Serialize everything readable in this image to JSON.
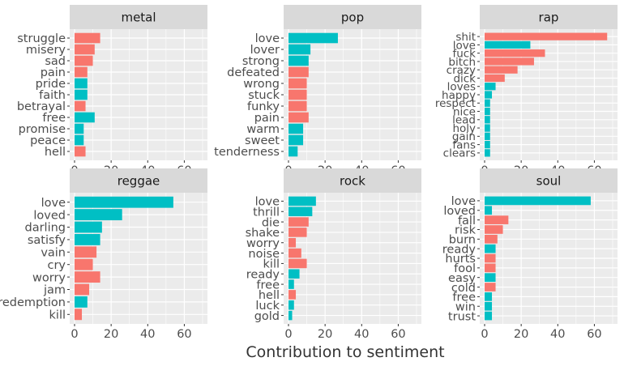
{
  "chart_data": {
    "type": "bar",
    "orientation": "horizontal",
    "xlabel": "Contribution to sentiment",
    "xlim": [
      0,
      70
    ],
    "xticks": [
      "0",
      "20",
      "40",
      "60"
    ],
    "facet_layout": "2x3",
    "grid": true,
    "colors": {
      "positive": "#00BFC4",
      "negative": "#F8766D",
      "panel_bg": "#EBEBEB",
      "strip_bg": "#D9D9D9",
      "grid": "#FFFFFF"
    },
    "panels": [
      {
        "title": "metal",
        "bars": [
          {
            "word": "struggle",
            "value": 14,
            "sentiment": "negative"
          },
          {
            "word": "misery",
            "value": 11,
            "sentiment": "negative"
          },
          {
            "word": "sad",
            "value": 10,
            "sentiment": "negative"
          },
          {
            "word": "pain",
            "value": 7,
            "sentiment": "negative"
          },
          {
            "word": "pride",
            "value": 7,
            "sentiment": "positive"
          },
          {
            "word": "faith",
            "value": 7,
            "sentiment": "positive"
          },
          {
            "word": "betrayal",
            "value": 6,
            "sentiment": "negative"
          },
          {
            "word": "free",
            "value": 11,
            "sentiment": "positive"
          },
          {
            "word": "promise",
            "value": 5,
            "sentiment": "positive"
          },
          {
            "word": "peace",
            "value": 5,
            "sentiment": "positive"
          },
          {
            "word": "hell",
            "value": 6,
            "sentiment": "negative"
          }
        ]
      },
      {
        "title": "pop",
        "bars": [
          {
            "word": "love",
            "value": 27,
            "sentiment": "positive"
          },
          {
            "word": "lover",
            "value": 12,
            "sentiment": "positive"
          },
          {
            "word": "strong",
            "value": 11,
            "sentiment": "positive"
          },
          {
            "word": "defeated",
            "value": 11,
            "sentiment": "negative"
          },
          {
            "word": "wrong",
            "value": 10,
            "sentiment": "negative"
          },
          {
            "word": "stuck",
            "value": 10,
            "sentiment": "negative"
          },
          {
            "word": "funky",
            "value": 10,
            "sentiment": "negative"
          },
          {
            "word": "pain",
            "value": 11,
            "sentiment": "negative"
          },
          {
            "word": "warm",
            "value": 8,
            "sentiment": "positive"
          },
          {
            "word": "sweet",
            "value": 8,
            "sentiment": "positive"
          },
          {
            "word": "tenderness",
            "value": 5,
            "sentiment": "positive"
          }
        ]
      },
      {
        "title": "rap",
        "bars": [
          {
            "word": "shit",
            "value": 67,
            "sentiment": "negative"
          },
          {
            "word": "love",
            "value": 25,
            "sentiment": "positive"
          },
          {
            "word": "fuck",
            "value": 33,
            "sentiment": "negative"
          },
          {
            "word": "bitch",
            "value": 27,
            "sentiment": "negative"
          },
          {
            "word": "crazy",
            "value": 18,
            "sentiment": "negative"
          },
          {
            "word": "dick",
            "value": 11,
            "sentiment": "negative"
          },
          {
            "word": "loves",
            "value": 6,
            "sentiment": "positive"
          },
          {
            "word": "happy",
            "value": 4,
            "sentiment": "positive"
          },
          {
            "word": "respect",
            "value": 3,
            "sentiment": "positive"
          },
          {
            "word": "nice",
            "value": 3,
            "sentiment": "positive"
          },
          {
            "word": "lead",
            "value": 3,
            "sentiment": "positive"
          },
          {
            "word": "holy",
            "value": 3,
            "sentiment": "positive"
          },
          {
            "word": "gain",
            "value": 3,
            "sentiment": "positive"
          },
          {
            "word": "fans",
            "value": 3,
            "sentiment": "positive"
          },
          {
            "word": "clears",
            "value": 3,
            "sentiment": "positive"
          }
        ]
      },
      {
        "title": "reggae",
        "bars": [
          {
            "word": "love",
            "value": 54,
            "sentiment": "positive"
          },
          {
            "word": "loved",
            "value": 26,
            "sentiment": "positive"
          },
          {
            "word": "darling",
            "value": 15,
            "sentiment": "positive"
          },
          {
            "word": "satisfy",
            "value": 14,
            "sentiment": "positive"
          },
          {
            "word": "vain",
            "value": 12,
            "sentiment": "negative"
          },
          {
            "word": "cry",
            "value": 10,
            "sentiment": "negative"
          },
          {
            "word": "worry",
            "value": 14,
            "sentiment": "negative"
          },
          {
            "word": "jam",
            "value": 8,
            "sentiment": "negative"
          },
          {
            "word": "redemption",
            "value": 7,
            "sentiment": "positive"
          },
          {
            "word": "kill",
            "value": 4,
            "sentiment": "negative"
          }
        ]
      },
      {
        "title": "rock",
        "bars": [
          {
            "word": "love",
            "value": 15,
            "sentiment": "positive"
          },
          {
            "word": "thrill",
            "value": 13,
            "sentiment": "positive"
          },
          {
            "word": "die",
            "value": 11,
            "sentiment": "negative"
          },
          {
            "word": "shake",
            "value": 10,
            "sentiment": "negative"
          },
          {
            "word": "worry",
            "value": 4,
            "sentiment": "negative"
          },
          {
            "word": "noise",
            "value": 7,
            "sentiment": "negative"
          },
          {
            "word": "kill",
            "value": 10,
            "sentiment": "negative"
          },
          {
            "word": "ready",
            "value": 6,
            "sentiment": "positive"
          },
          {
            "word": "free",
            "value": 3,
            "sentiment": "positive"
          },
          {
            "word": "hell",
            "value": 4,
            "sentiment": "negative"
          },
          {
            "word": "luck",
            "value": 3,
            "sentiment": "positive"
          },
          {
            "word": "gold",
            "value": 2,
            "sentiment": "positive"
          }
        ]
      },
      {
        "title": "soul",
        "bars": [
          {
            "word": "love",
            "value": 58,
            "sentiment": "positive"
          },
          {
            "word": "loved",
            "value": 4,
            "sentiment": "positive"
          },
          {
            "word": "fall",
            "value": 13,
            "sentiment": "negative"
          },
          {
            "word": "risk",
            "value": 10,
            "sentiment": "negative"
          },
          {
            "word": "burn",
            "value": 7,
            "sentiment": "negative"
          },
          {
            "word": "ready",
            "value": 6,
            "sentiment": "positive"
          },
          {
            "word": "hurts",
            "value": 6,
            "sentiment": "negative"
          },
          {
            "word": "fool",
            "value": 6,
            "sentiment": "negative"
          },
          {
            "word": "easy",
            "value": 6,
            "sentiment": "positive"
          },
          {
            "word": "cold",
            "value": 6,
            "sentiment": "negative"
          },
          {
            "word": "free",
            "value": 4,
            "sentiment": "positive"
          },
          {
            "word": "win",
            "value": 4,
            "sentiment": "positive"
          },
          {
            "word": "trust",
            "value": 4,
            "sentiment": "positive"
          }
        ]
      }
    ]
  }
}
